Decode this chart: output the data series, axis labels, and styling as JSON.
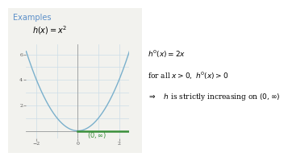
{
  "title": "Examples",
  "func_label": "$h(x) = x^2$",
  "x_range": [
    -2.5,
    2.5
  ],
  "y_range": [
    -0.6,
    6.8
  ],
  "x_ticks": [
    -2,
    0,
    2
  ],
  "y_ticks": [
    2,
    4,
    6
  ],
  "curve_color": "#7ab0cc",
  "interval_color": "#3a8f3a",
  "interval_label": "$(0, \\infty)$",
  "text_lines": [
    "$h'(x) = 2x$",
    "for all $x > 0,\\; h'(x) > 0$",
    "$\\Rightarrow \\quad h$ is strictly increasing on $(0, \\infty)$"
  ],
  "examples_color": "#5b8fc9",
  "title_fontsize": 7,
  "func_fontsize": 7,
  "annotation_fontsize": 6.5,
  "bg_color": "#f2f2ee",
  "right_bg": "#ffffff",
  "grid_color": "#ccdde8",
  "axis_color": "#999999",
  "tick_color": "#555555"
}
